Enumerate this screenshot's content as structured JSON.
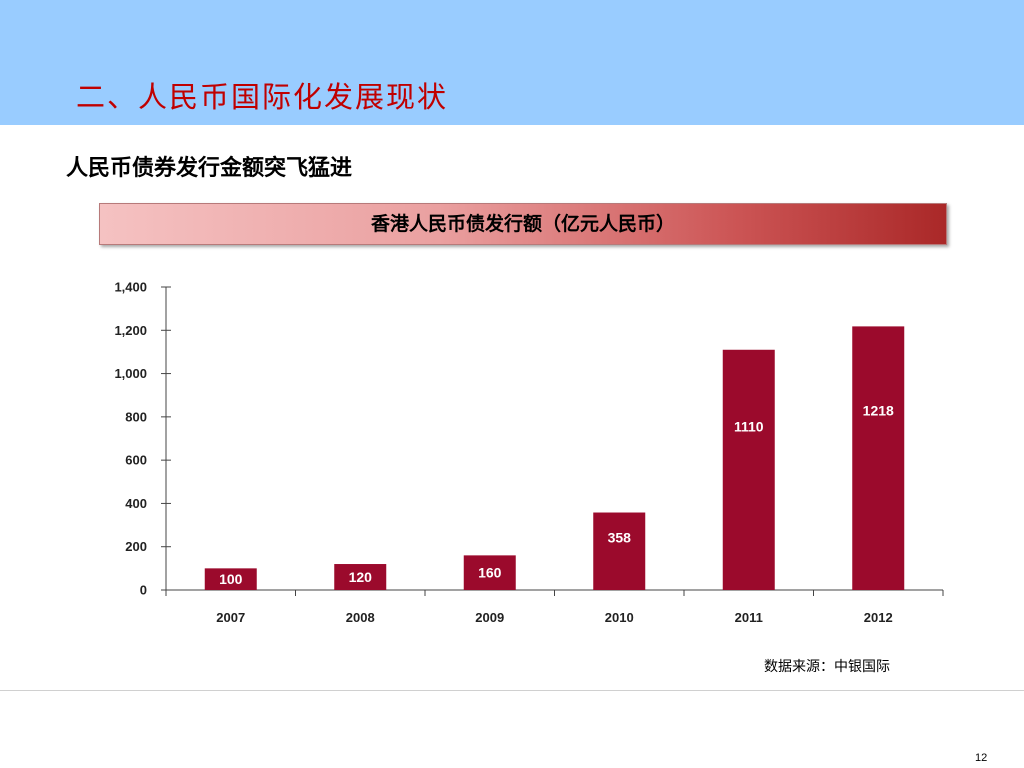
{
  "slide": {
    "title": "二、人民币国际化发展现状",
    "subtitle": "人民币债券发行金额突飞猛进",
    "chart_title": "香港人民币债发行额（亿元人民币）",
    "source": "数据来源：中银国际",
    "page_number": "12"
  },
  "colors": {
    "header_band": "#99ccff",
    "title_text": "#c00000",
    "bar": "#9b0a2c"
  },
  "chart_data": {
    "type": "bar",
    "title": "香港人民币债发行额（亿元人民币）",
    "categories": [
      "2007",
      "2008",
      "2009",
      "2010",
      "2011",
      "2012"
    ],
    "values": [
      100,
      120,
      160,
      358,
      1110,
      1218
    ],
    "data_labels": [
      "100",
      "120",
      "160",
      "358",
      "1110",
      "1218"
    ],
    "yticks": [
      0,
      200,
      400,
      600,
      800,
      1000,
      1200,
      1400
    ],
    "ytick_labels": [
      "0",
      "200",
      "400",
      "600",
      "800",
      "1,000",
      "1,200",
      "1,400"
    ],
    "ylim": [
      0,
      1400
    ],
    "grid": false,
    "legend": "none"
  }
}
